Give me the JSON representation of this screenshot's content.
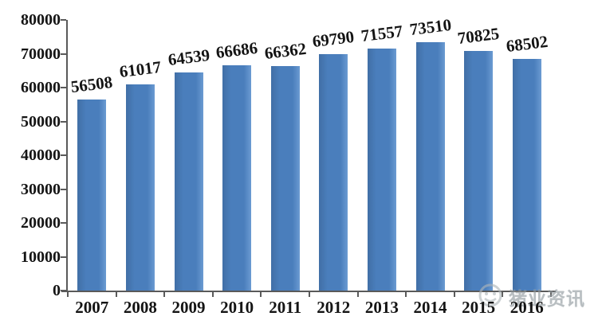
{
  "chart_data": {
    "type": "bar",
    "title": "",
    "xlabel": "",
    "ylabel": "",
    "categories": [
      "2007",
      "2008",
      "2009",
      "2010",
      "2011",
      "2012",
      "2013",
      "2014",
      "2015",
      "2016"
    ],
    "values": [
      56508,
      61017,
      64539,
      66686,
      66362,
      69790,
      71557,
      73510,
      70825,
      68502
    ],
    "data_labels": [
      "56508",
      "61017",
      "64539",
      "66686",
      "66362",
      "69790",
      "71557",
      "73510",
      "70825",
      "68502"
    ],
    "ylim": [
      0,
      80000
    ],
    "ytick_step": 10000,
    "ytick_labels": [
      "0",
      "10000",
      "20000",
      "30000",
      "40000",
      "50000",
      "60000",
      "70000",
      "80000"
    ],
    "grid": "off",
    "legend": "none",
    "bar_color": "#4a7ebc",
    "axis_color": "#5a5a5a",
    "text_color": "#141414"
  },
  "watermark": {
    "text": "猪业资讯",
    "icon": "pig-media-logo"
  }
}
